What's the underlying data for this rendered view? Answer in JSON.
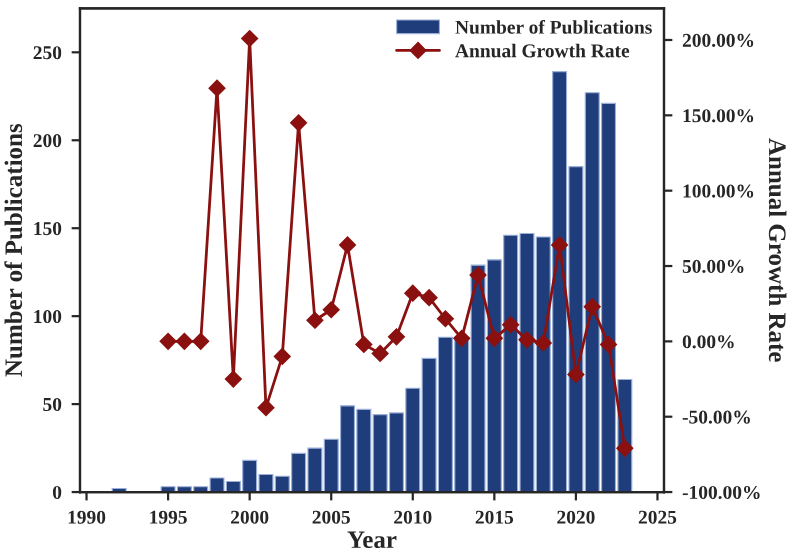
{
  "chart_data": {
    "type": "bar",
    "xlabel": "Year",
    "ylabel": "Number of Publications",
    "y2label": "Annual Growth Rate",
    "xlim": [
      1989.6,
      2025.4
    ],
    "xticks": [
      1990,
      1995,
      2000,
      2005,
      2010,
      2015,
      2020,
      2025
    ],
    "ylim": [
      0,
      275
    ],
    "yticks": [
      0,
      50,
      100,
      150,
      200,
      250
    ],
    "y2lim": [
      -100,
      221
    ],
    "y2ticks": [
      {
        "value": -100,
        "label": "-100.00%"
      },
      {
        "value": -50,
        "label": "-50.00%"
      },
      {
        "value": 0,
        "label": "0.00%"
      },
      {
        "value": 50,
        "label": "50.00%"
      },
      {
        "value": 100,
        "label": "100.00%"
      },
      {
        "value": 150,
        "label": "150.00%"
      },
      {
        "value": 200,
        "label": "200.00%"
      }
    ],
    "grid": false,
    "legend": "top right",
    "series": [
      {
        "name": "Number of Publications",
        "color": "#1f3d7a",
        "x": [
          1992,
          1995,
          1996,
          1997,
          1998,
          1999,
          2000,
          2001,
          2002,
          2003,
          2004,
          2005,
          2006,
          2007,
          2008,
          2009,
          2010,
          2011,
          2012,
          2013,
          2014,
          2015,
          2016,
          2017,
          2018,
          2019,
          2020,
          2021,
          2022,
          2023
        ],
        "values": [
          2,
          3,
          3,
          3,
          8,
          6,
          18,
          10,
          9,
          22,
          25,
          30,
          49,
          47,
          44,
          45,
          59,
          76,
          88,
          88,
          129,
          132,
          146,
          147,
          145,
          239,
          185,
          227,
          221,
          64
        ]
      },
      {
        "name": "Annual Growth Rate",
        "type": "line",
        "axis": "y2",
        "color": "#8b1010",
        "marker": "diamond",
        "line_style": "solid",
        "x": [
          1995,
          1996,
          1997,
          1998,
          1999,
          2000,
          2001,
          2002,
          2003,
          2004,
          2005,
          2006,
          2007,
          2008,
          2009,
          2010,
          2011,
          2012,
          2013,
          2014,
          2015,
          2016,
          2017,
          2018,
          2019,
          2020,
          2021,
          2022,
          2023
        ],
        "values": [
          0,
          0,
          0,
          168,
          -25,
          201,
          -44,
          -10,
          145,
          14,
          21,
          64,
          -2,
          -8,
          3,
          32,
          29,
          15,
          2,
          44,
          2,
          11,
          1,
          -1,
          64,
          -22,
          23,
          -2,
          -71
        ]
      }
    ]
  }
}
